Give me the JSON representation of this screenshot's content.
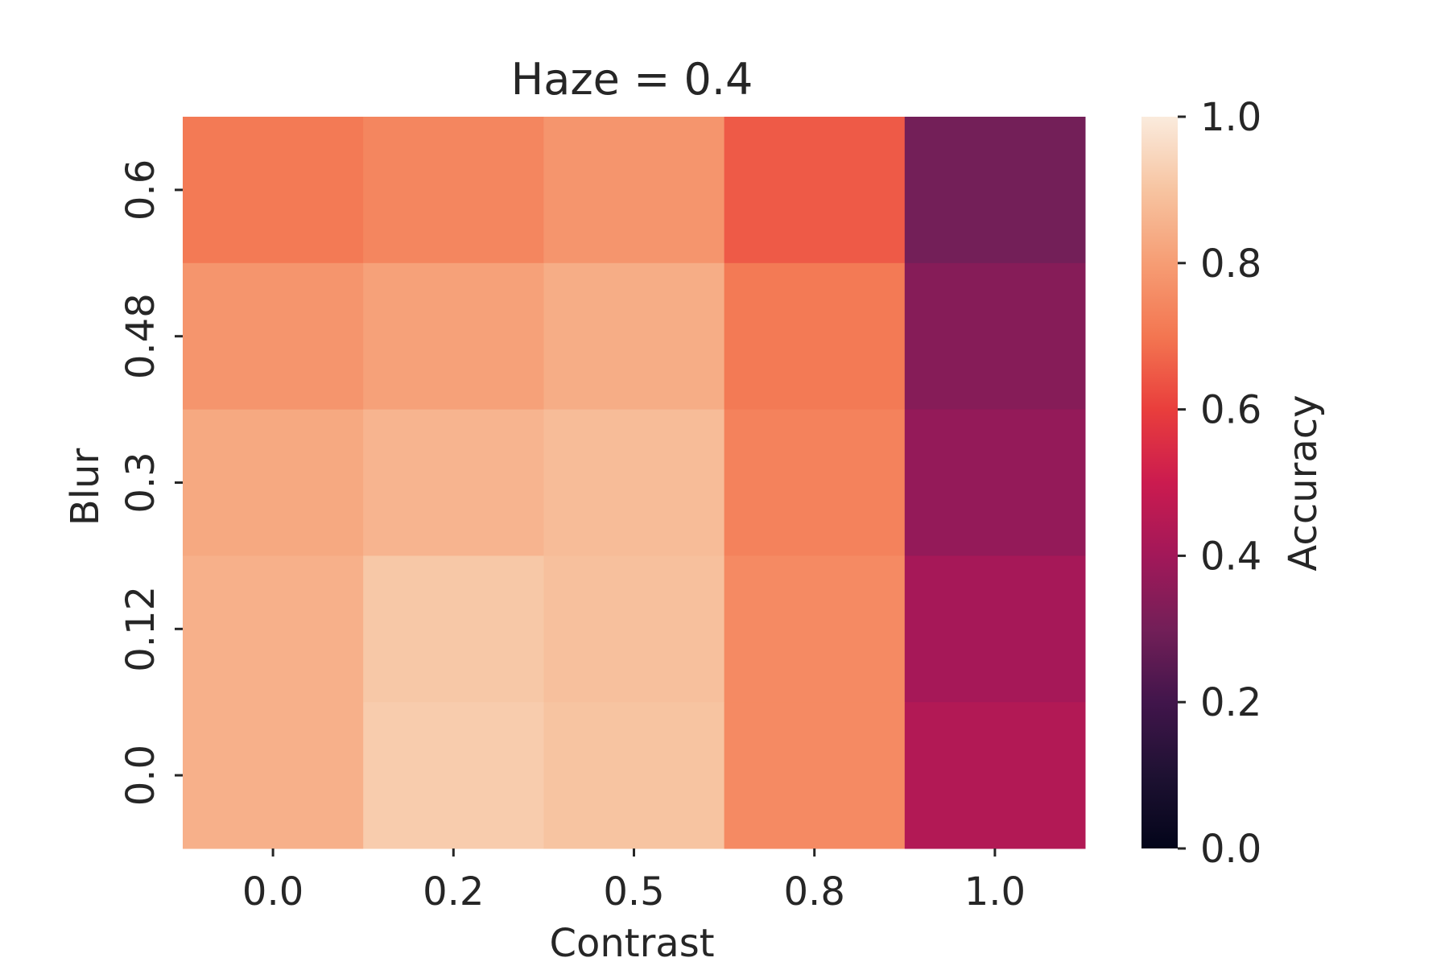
{
  "chart_data": {
    "type": "heatmap",
    "title": "Haze = 0.4",
    "xlabel": "Contrast",
    "ylabel": "Blur",
    "x_categories": [
      "0.0",
      "0.2",
      "0.5",
      "0.8",
      "1.0"
    ],
    "y_categories": [
      "0.6",
      "0.48",
      "0.3",
      "0.12",
      "0.0"
    ],
    "values": [
      [
        0.71,
        0.74,
        0.78,
        0.65,
        0.3
      ],
      [
        0.78,
        0.81,
        0.84,
        0.71,
        0.34
      ],
      [
        0.83,
        0.86,
        0.88,
        0.73,
        0.37
      ],
      [
        0.85,
        0.91,
        0.89,
        0.75,
        0.41
      ],
      [
        0.85,
        0.92,
        0.9,
        0.75,
        0.44
      ]
    ],
    "colorbar": {
      "label": "Accuracy",
      "range": [
        0.0,
        1.0
      ],
      "ticks": [
        "0.0",
        "0.2",
        "0.4",
        "0.6",
        "0.8",
        "1.0"
      ],
      "colormap": "rocket"
    },
    "grid": false
  }
}
